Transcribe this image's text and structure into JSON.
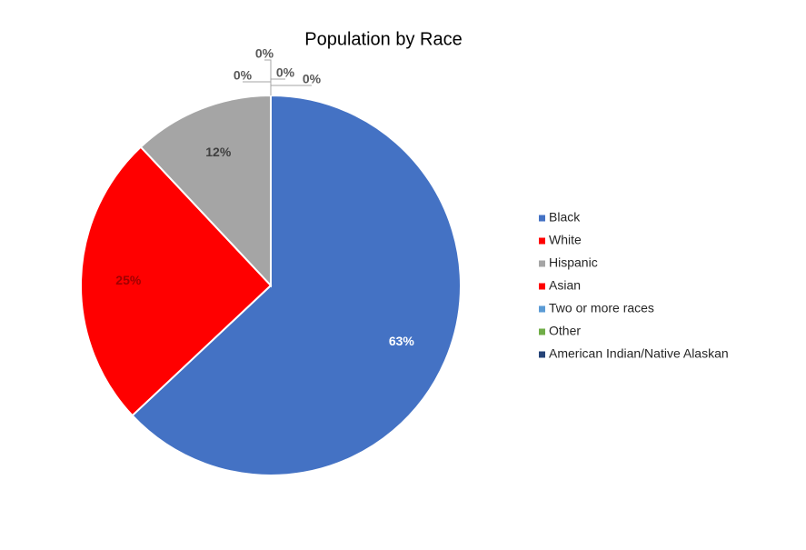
{
  "chart_data": {
    "type": "pie",
    "title": "Population by Race",
    "categories": [
      "Black",
      "White",
      "Hispanic",
      "Asian",
      "Two or more races",
      "Other",
      "American Indian/Native Alaskan"
    ],
    "values": [
      63,
      25,
      12,
      0,
      0,
      0,
      0
    ],
    "value_labels": [
      "63%",
      "25%",
      "12%",
      "0%",
      "0%",
      "0%",
      "0%"
    ],
    "colors": [
      "#4472c4",
      "#ff0000",
      "#a5a5a5",
      "#ff0000",
      "#5b9bd5",
      "#70ad47",
      "#264478"
    ],
    "legend": "right"
  }
}
